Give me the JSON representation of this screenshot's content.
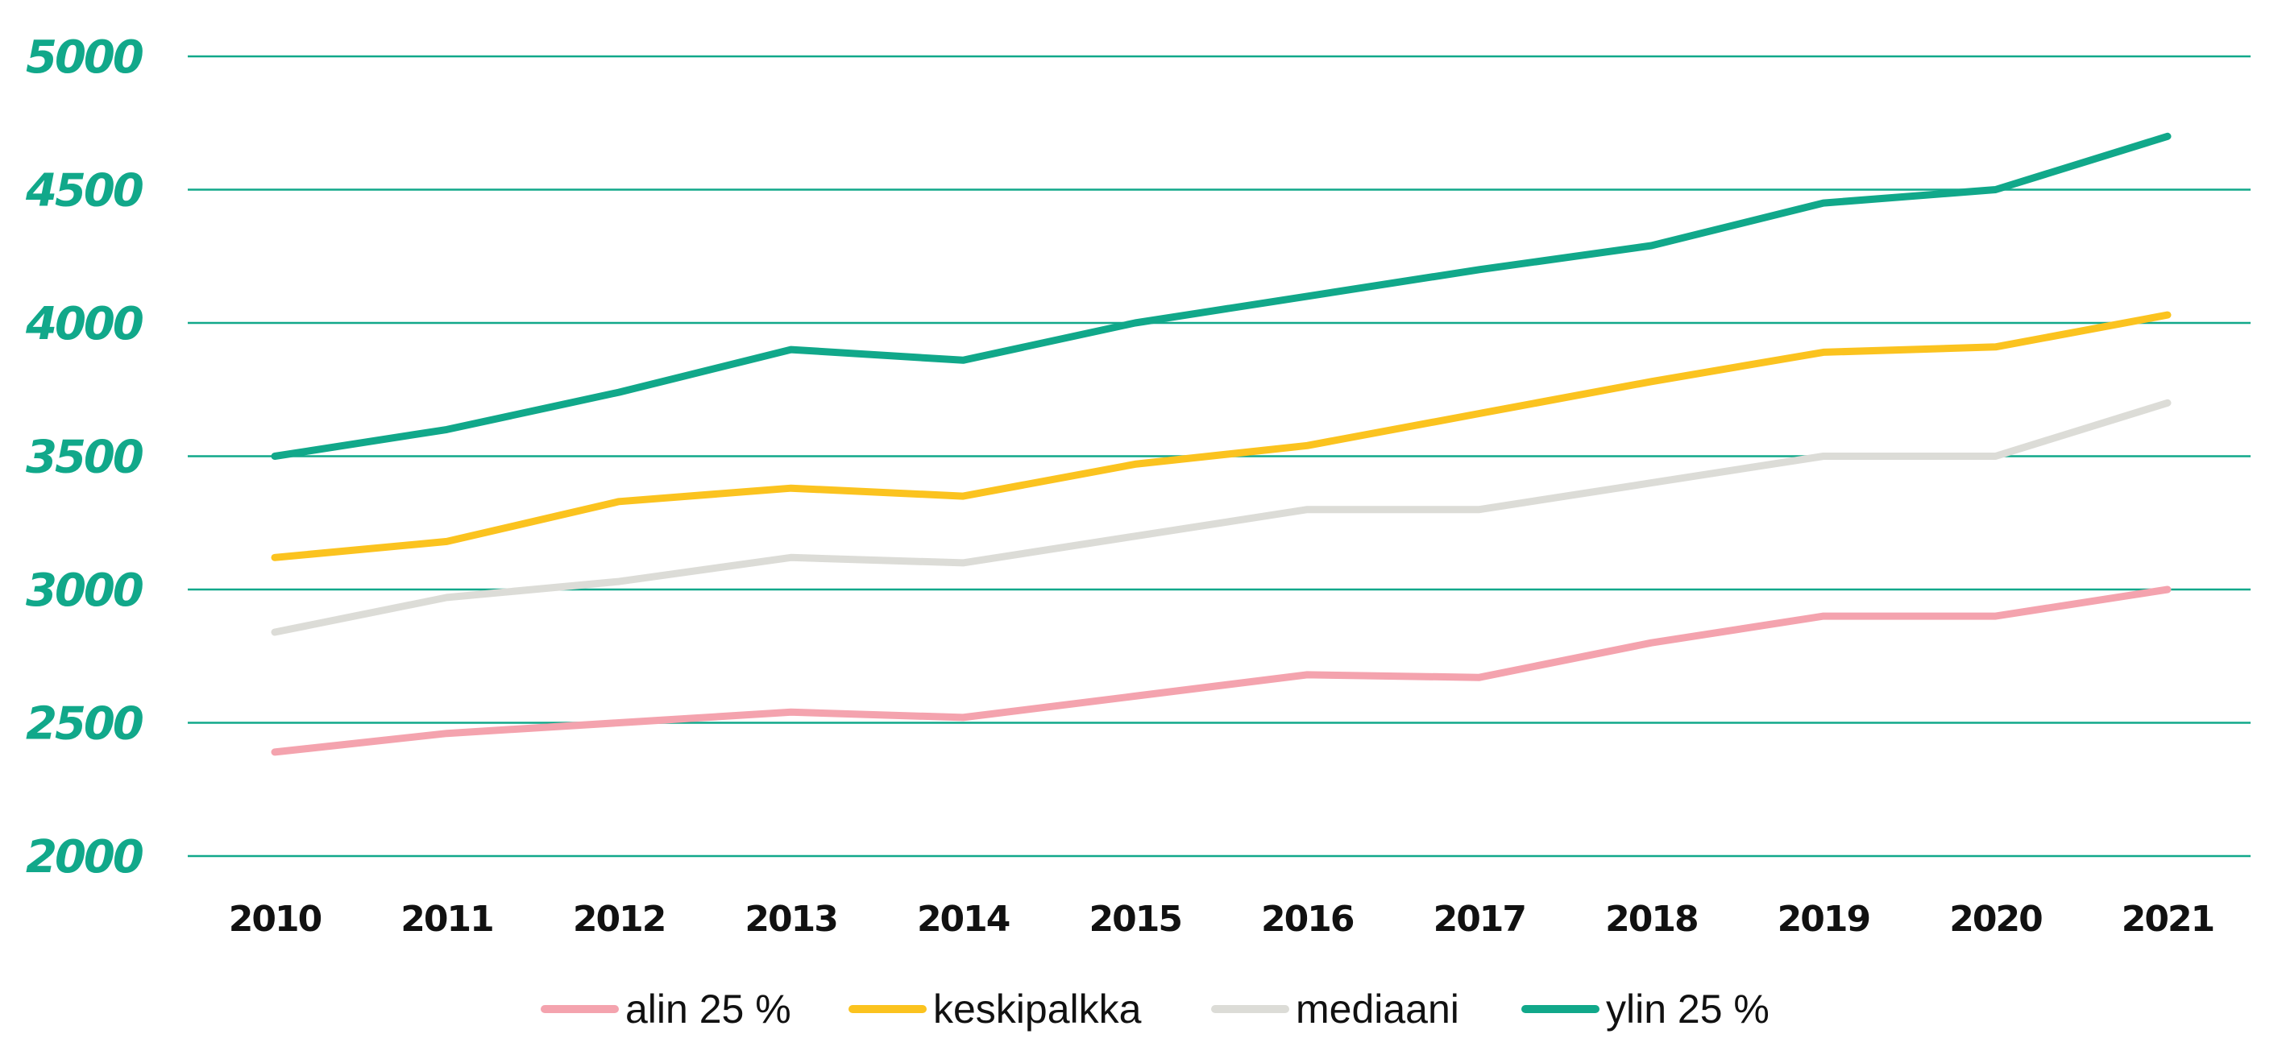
{
  "chart_data": {
    "type": "line",
    "title": "",
    "xlabel": "",
    "ylabel": "",
    "ylim": [
      2000,
      5000
    ],
    "yticks": [
      "5000",
      "4500",
      "4000",
      "3500",
      "3000",
      "2500",
      "2000"
    ],
    "categories": [
      "2010",
      "2011",
      "2012",
      "2013",
      "2014",
      "2015",
      "2016",
      "2017",
      "2018",
      "2019",
      "2020",
      "2021"
    ],
    "grid": true,
    "legend_position": "bottom",
    "series": [
      {
        "name": "alin 25 %",
        "color": "#f4a3ae",
        "values": [
          2390,
          2460,
          2500,
          2540,
          2520,
          2600,
          2680,
          2670,
          2800,
          2900,
          2900,
          3000
        ]
      },
      {
        "name": "keskipalkka",
        "color": "#fbc31f",
        "values": [
          3120,
          3180,
          3330,
          3380,
          3350,
          3470,
          3540,
          3660,
          3780,
          3890,
          3910,
          4030
        ]
      },
      {
        "name": "mediaani",
        "color": "#dcdcd7",
        "values": [
          2840,
          2970,
          3030,
          3120,
          3100,
          3200,
          3300,
          3300,
          3400,
          3500,
          3500,
          3700
        ]
      },
      {
        "name": "ylin 25 %",
        "color": "#11a88a",
        "values": [
          3500,
          3600,
          3740,
          3900,
          3860,
          4000,
          4100,
          4200,
          4290,
          4450,
          4500,
          4700
        ]
      }
    ],
    "colors": {
      "grid": "#11a88a",
      "ytick": "#11a88a",
      "xtick": "#111111",
      "legend_text": "#111111"
    }
  }
}
